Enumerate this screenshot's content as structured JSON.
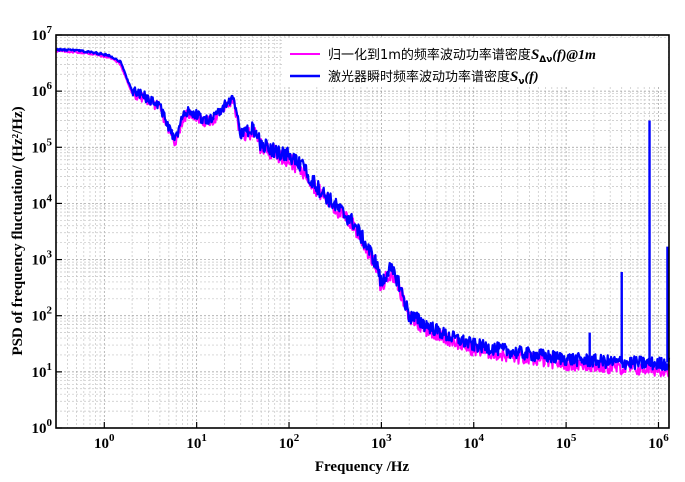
{
  "chart_data": {
    "type": "line",
    "title": "",
    "xlabel": "Frequency /Hz",
    "ylabel": "PSD of frequency fluctuation/ (Hz²/Hz)",
    "xscale": "log",
    "yscale": "log",
    "xlim": [
      0.3,
      1300000
    ],
    "ylim": [
      1,
      10000000
    ],
    "grid": true,
    "legend_position": "top-right",
    "x_tick_labels": [
      {
        "base": "10",
        "exp": "0"
      },
      {
        "base": "10",
        "exp": "1"
      },
      {
        "base": "10",
        "exp": "2"
      },
      {
        "base": "10",
        "exp": "3"
      },
      {
        "base": "10",
        "exp": "4"
      },
      {
        "base": "10",
        "exp": "5"
      },
      {
        "base": "10",
        "exp": "6"
      }
    ],
    "y_tick_labels": [
      {
        "base": "10",
        "exp": "0"
      },
      {
        "base": "10",
        "exp": "1"
      },
      {
        "base": "10",
        "exp": "2"
      },
      {
        "base": "10",
        "exp": "3"
      },
      {
        "base": "10",
        "exp": "4"
      },
      {
        "base": "10",
        "exp": "5"
      },
      {
        "base": "10",
        "exp": "6"
      },
      {
        "base": "10",
        "exp": "7"
      }
    ],
    "series": [
      {
        "name": "归一化到1m的频率波动功率谱密度S_Δν(f)@1m",
        "label_text": "归一化到1m的频率波动功率谱密度",
        "label_symbol": "S",
        "label_subscript": "Δν",
        "label_suffix": "(f)@1m",
        "color": "#ff00ff",
        "x": [
          0.3,
          0.5,
          0.8,
          1.2,
          1.5,
          2,
          3,
          4,
          5,
          5.8,
          7,
          8,
          10,
          12,
          15,
          20,
          25,
          30,
          40,
          50,
          70,
          100,
          150,
          200,
          300,
          500,
          700,
          900,
          1000,
          1200,
          1500,
          2000,
          3000,
          5000,
          10000,
          30000,
          100000,
          300000,
          1000000,
          1300000
        ],
        "values": [
          5200000,
          5000000,
          4500000,
          3900000,
          3000000,
          900000,
          700000,
          500000,
          200000,
          120000,
          300000,
          400000,
          350000,
          280000,
          300000,
          500000,
          700000,
          150000,
          200000,
          100000,
          80000,
          60000,
          35000,
          18000,
          9000,
          4000,
          1500,
          700,
          300,
          600,
          400,
          90,
          60,
          40,
          25,
          18,
          14,
          12,
          11,
          11
        ]
      },
      {
        "name": "激光器瞬时频率波动功率谱密度S_ν(f)",
        "label_text": "激光器瞬时频率波动功率谱密度",
        "label_symbol": "S",
        "label_subscript": "ν",
        "label_suffix": "(f)",
        "color": "#0000ff",
        "x": [
          0.3,
          0.5,
          0.8,
          1.2,
          1.5,
          2,
          3,
          4,
          5,
          5.8,
          7,
          8,
          10,
          12,
          15,
          20,
          25,
          30,
          40,
          50,
          70,
          100,
          150,
          200,
          300,
          500,
          700,
          900,
          1000,
          1200,
          1500,
          2000,
          3000,
          5000,
          10000,
          30000,
          100000,
          300000,
          1000000,
          1300000
        ],
        "values": [
          5500000,
          5300000,
          4800000,
          4200000,
          3300000,
          1000000,
          750000,
          550000,
          220000,
          130000,
          330000,
          440000,
          380000,
          300000,
          330000,
          550000,
          800000,
          170000,
          220000,
          110000,
          90000,
          70000,
          40000,
          20000,
          10000,
          4500,
          1700,
          800,
          350,
          700,
          450,
          100,
          70,
          45,
          30,
          22,
          17,
          15,
          14,
          14
        ]
      }
    ],
    "spikes": [
      {
        "x": 180000,
        "y": 50
      },
      {
        "x": 400000,
        "y": 600
      },
      {
        "x": 800000,
        "y": 300000
      },
      {
        "x": 1250000,
        "y": 1700
      }
    ]
  }
}
